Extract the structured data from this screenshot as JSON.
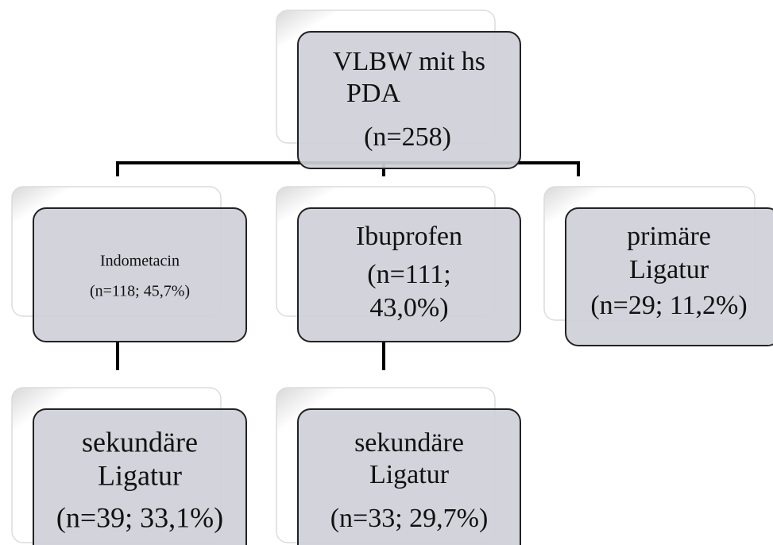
{
  "nodes": [
    {
      "lines": [
        "VLBW mit hs",
        "PDA",
        "(n=258)"
      ]
    },
    {
      "lines": [
        "Indometacin",
        "(n=118; 45,7%)"
      ]
    },
    {
      "lines": [
        "Ibuprofen",
        "(n=111;",
        "43,0%)"
      ]
    },
    {
      "lines": [
        "primäre",
        "Ligatur",
        "(n=29; 11,2%)"
      ]
    },
    {
      "lines": [
        "sekundäre",
        "Ligatur",
        "(n=39; 33,1%)"
      ]
    },
    {
      "lines": [
        "sekundäre",
        "Ligatur",
        "(n=33; 29,7%)"
      ]
    }
  ]
}
